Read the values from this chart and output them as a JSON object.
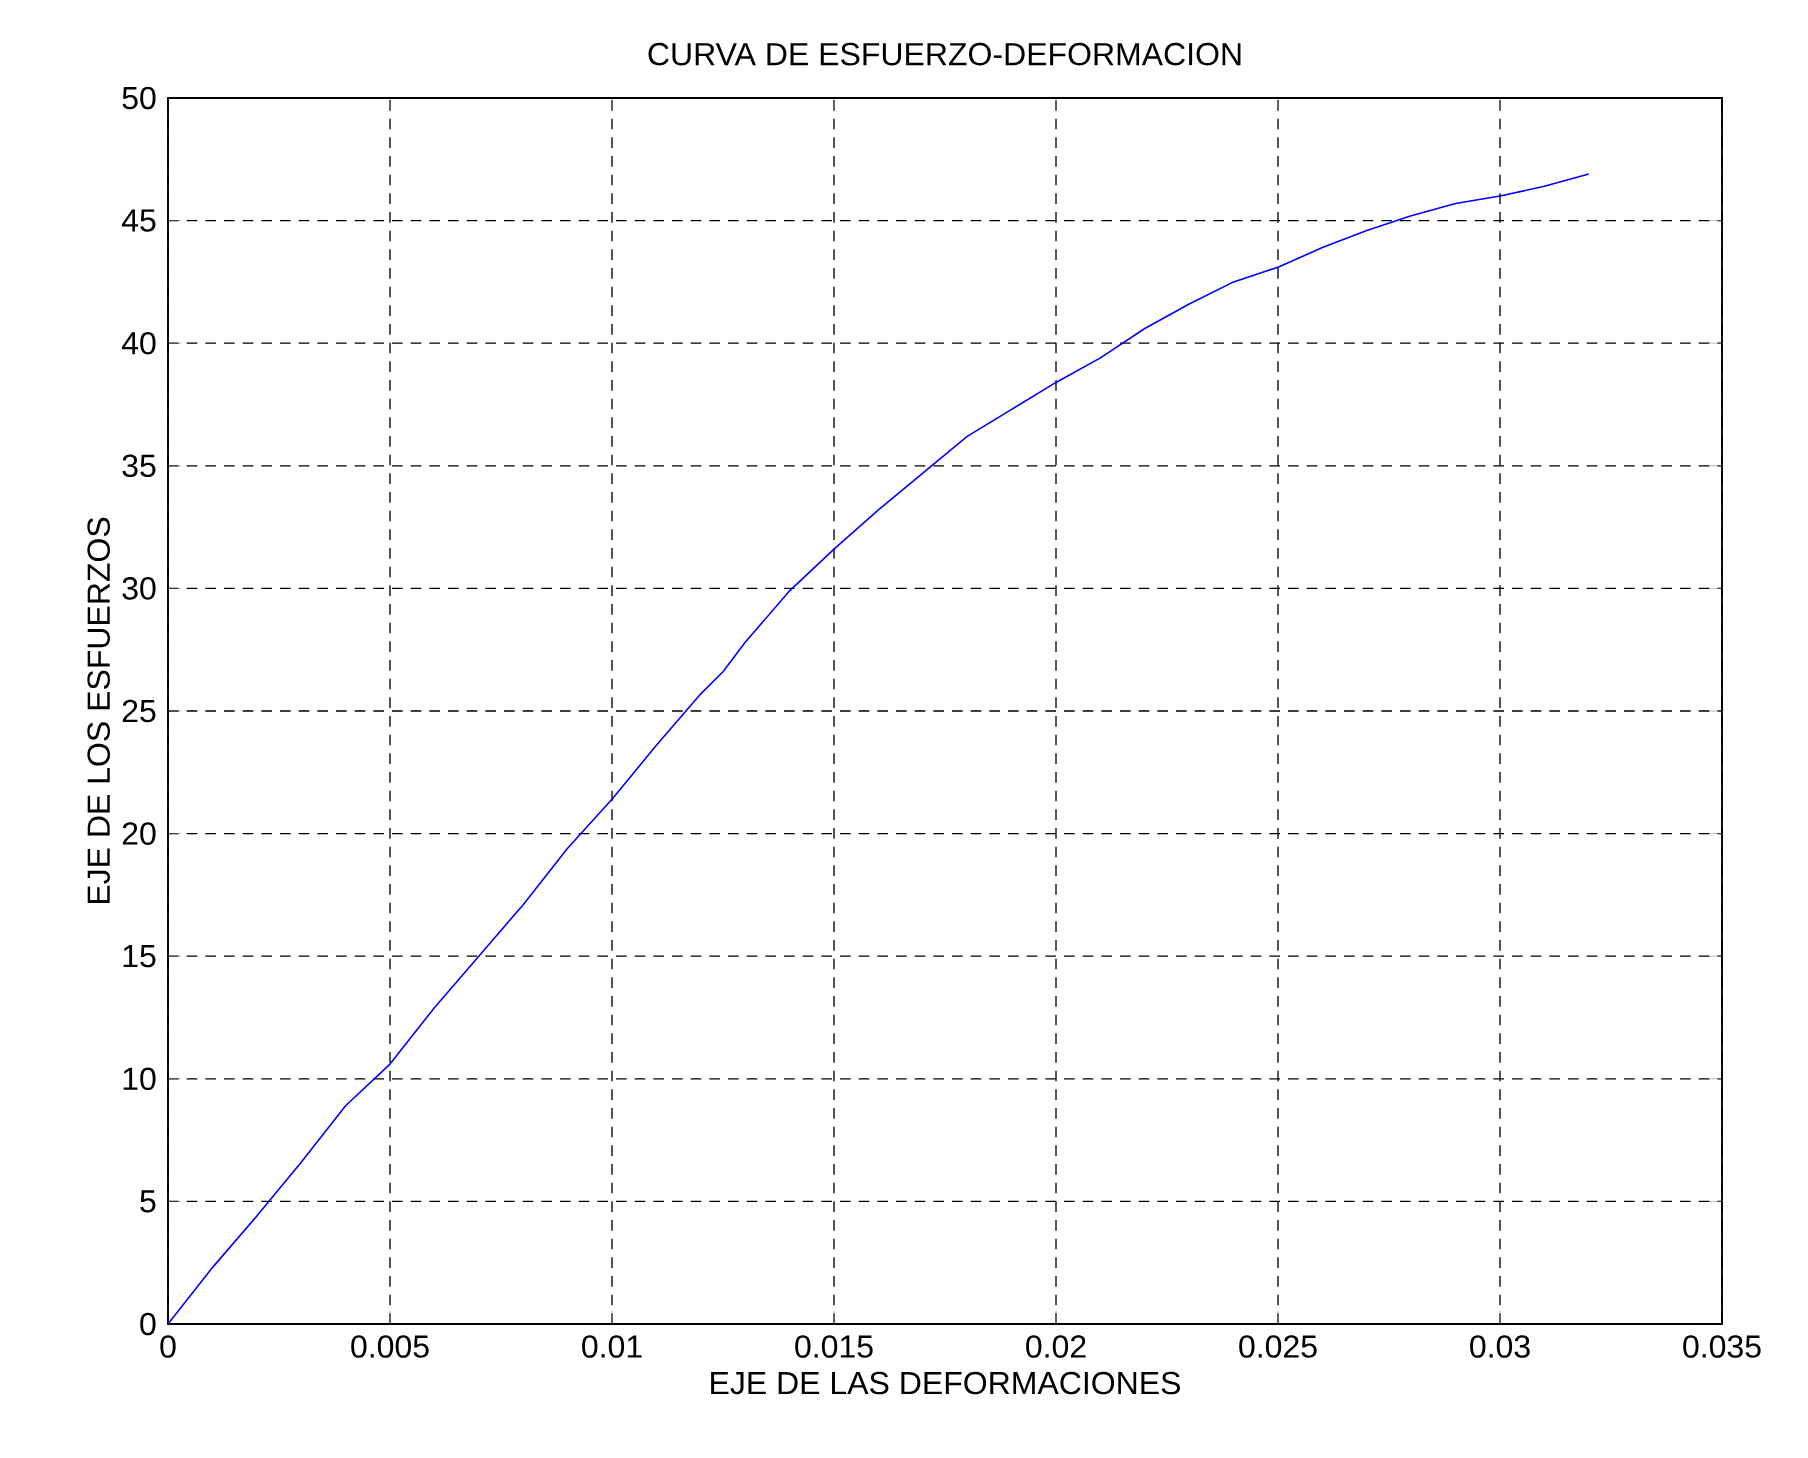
{
  "chart_data": {
    "type": "line",
    "title": "CURVA DE ESFUERZO-DEFORMACION",
    "xlabel": "EJE DE LAS DEFORMACIONES",
    "ylabel": "EJE DE LOS ESFUERZOS",
    "x": [
      0,
      0.001,
      0.002,
      0.003,
      0.004,
      0.005,
      0.006,
      0.007,
      0.008,
      0.009,
      0.01,
      0.011,
      0.012,
      0.0125,
      0.013,
      0.014,
      0.015,
      0.016,
      0.017,
      0.018,
      0.019,
      0.02,
      0.021,
      0.0215,
      0.022,
      0.023,
      0.024,
      0.025,
      0.026,
      0.027,
      0.028,
      0.029,
      0.03,
      0.031,
      0.032
    ],
    "series": [
      {
        "color": "#0000ff",
        "values": [
          0,
          2.3,
          4.4,
          6.6,
          8.9,
          10.6,
          12.9,
          15.0,
          17.1,
          19.4,
          21.4,
          23.6,
          25.7,
          26.6,
          27.8,
          29.9,
          31.6,
          33.2,
          34.7,
          36.2,
          37.3,
          38.4,
          39.4,
          40.0,
          40.6,
          41.6,
          42.5,
          43.1,
          43.9,
          44.6,
          45.2,
          45.7,
          46.0,
          46.4,
          46.9
        ]
      }
    ],
    "xlim": [
      0,
      0.035
    ],
    "ylim": [
      0,
      50
    ],
    "xticks": [
      0,
      0.005,
      0.01,
      0.015,
      0.02,
      0.025,
      0.03,
      0.035
    ],
    "yticks": [
      0,
      5,
      10,
      15,
      20,
      25,
      30,
      35,
      40,
      45,
      50
    ],
    "grid": true,
    "line_style": "solid",
    "marker": "none"
  }
}
